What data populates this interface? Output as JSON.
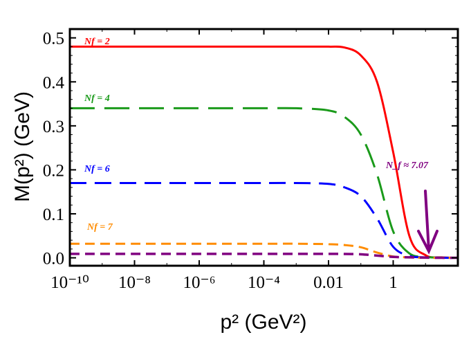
{
  "chart_data": {
    "type": "line",
    "xlabel": "p² (GeV²)",
    "ylabel": "M(p²) (GeV)",
    "x_scale": "log",
    "xlim": [
      1e-10,
      100
    ],
    "ylim": [
      -0.018,
      0.52
    ],
    "x_ticks": [
      {
        "value": 1e-10,
        "label": "10⁻¹⁰"
      },
      {
        "value": 1e-08,
        "label": "10⁻⁸"
      },
      {
        "value": 1e-06,
        "label": "10⁻⁶"
      },
      {
        "value": 0.0001,
        "label": "10⁻⁴"
      },
      {
        "value": 0.01,
        "label": "0.01"
      },
      {
        "value": 1,
        "label": "1"
      }
    ],
    "y_ticks": [
      {
        "value": 0,
        "label": "0.0"
      },
      {
        "value": 0.1,
        "label": "0.1"
      },
      {
        "value": 0.2,
        "label": "0.2"
      },
      {
        "value": 0.3,
        "label": "0.3"
      },
      {
        "value": 0.4,
        "label": "0.4"
      },
      {
        "value": 0.5,
        "label": "0.5"
      }
    ],
    "x": [
      1e-10,
      1e-08,
      1e-06,
      0.0001,
      0.001,
      0.01,
      0.0316,
      0.1,
      0.316,
      1,
      3.16,
      10,
      31.6,
      100
    ],
    "series": [
      {
        "name": "N_f = 2",
        "color": "#ff0000",
        "dash": "solid",
        "values": [
          0.48,
          0.48,
          0.48,
          0.48,
          0.48,
          0.48,
          0.478,
          0.46,
          0.4,
          0.24,
          0.05,
          0.006,
          0.001,
          0.0
        ]
      },
      {
        "name": "N_f = 4",
        "color": "#1a9a1a",
        "dash": "long-dash",
        "values": [
          0.34,
          0.34,
          0.34,
          0.34,
          0.34,
          0.335,
          0.32,
          0.28,
          0.19,
          0.06,
          0.01,
          0.002,
          0.0005,
          0.0
        ]
      },
      {
        "name": "N_f = 6",
        "color": "#0000ff",
        "dash": "dash",
        "values": [
          0.17,
          0.17,
          0.17,
          0.17,
          0.17,
          0.168,
          0.16,
          0.14,
          0.09,
          0.025,
          0.004,
          0.001,
          0.0,
          0.0
        ]
      },
      {
        "name": "N_f = 7",
        "color": "#ff8c00",
        "dash": "short-dash",
        "values": [
          0.032,
          0.032,
          0.032,
          0.032,
          0.032,
          0.031,
          0.029,
          0.024,
          0.012,
          0.003,
          0.001,
          0.0,
          0.0,
          0.0
        ]
      },
      {
        "name": "N_f ≈ 7.07",
        "color": "#800080",
        "dash": "short-dash",
        "values": [
          0.009,
          0.009,
          0.009,
          0.009,
          0.009,
          0.009,
          0.0088,
          0.008,
          0.005,
          0.002,
          0.001,
          0.0005,
          0.0,
          0.0
        ]
      }
    ],
    "annotations": [
      {
        "text": "N_f ≈ 7.07",
        "type": "arrow",
        "color": "#800080",
        "points_to_x": 10,
        "points_to_y": 0.0
      }
    ],
    "legend": "inline-labels",
    "grid": false
  }
}
